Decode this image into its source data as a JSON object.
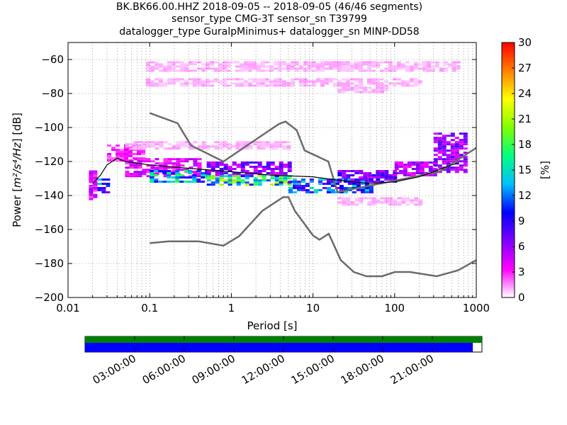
{
  "title_lines": [
    "BK.BK66.00.HHZ   2018-09-05 -- 2018-09-05  (46/46 segments)",
    "sensor_type CMG-3T sensor_sn T39799",
    "datalogger_type GuralpMinimus+ datalogger_sn MINP-DD58"
  ],
  "colors": {
    "noise_model": "#6b6b6b",
    "colorbar_stops": [
      "#ffffff",
      "#ff00ff",
      "#8000ff",
      "#0000ff",
      "#00c0ff",
      "#00ff80",
      "#80ff00",
      "#ffff00",
      "#ff8000",
      "#ff0000"
    ],
    "coverage_top": "#008000",
    "coverage_bottom": "#0000ff"
  },
  "chart_data": {
    "type": "heatmap",
    "xlabel": "Period [s]",
    "ylabel_prefix": "Power [",
    "ylabel_unit": "m²/s⁴/Hz",
    "ylabel_suffix": "] [dB]",
    "x_scale": "log",
    "xlim": [
      0.01,
      1000
    ],
    "ylim": [
      -200,
      -50
    ],
    "xticks": [
      {
        "value": 0.01,
        "label": "0.01"
      },
      {
        "value": 0.1,
        "label": "0.1"
      },
      {
        "value": 1,
        "label": "1"
      },
      {
        "value": 10,
        "label": "10"
      },
      {
        "value": 100,
        "label": "100"
      },
      {
        "value": 1000,
        "label": "1000"
      }
    ],
    "yticks": [
      {
        "value": -60,
        "label": "−60"
      },
      {
        "value": -80,
        "label": "−80"
      },
      {
        "value": -100,
        "label": "−100"
      },
      {
        "value": -120,
        "label": "−120"
      },
      {
        "value": -140,
        "label": "−140"
      },
      {
        "value": -160,
        "label": "−160"
      },
      {
        "value": -180,
        "label": "−180"
      },
      {
        "value": -200,
        "label": "−200"
      }
    ],
    "grid": true,
    "colorbar": {
      "label": "[%]",
      "range": [
        0,
        30
      ],
      "ticks": [
        {
          "value": 0,
          "label": "0"
        },
        {
          "value": 3,
          "label": "3"
        },
        {
          "value": 6,
          "label": "6"
        },
        {
          "value": 9,
          "label": "9"
        },
        {
          "value": 12,
          "label": "12"
        },
        {
          "value": 15,
          "label": "15"
        },
        {
          "value": 18,
          "label": "18"
        },
        {
          "value": 21,
          "label": "21"
        },
        {
          "value": 24,
          "label": "24"
        },
        {
          "value": 27,
          "label": "27"
        },
        {
          "value": 30,
          "label": "30"
        }
      ]
    },
    "noise_models": [
      {
        "x": [
          0.1,
          0.17,
          0.4,
          0.8,
          1.24,
          2.4,
          4.3,
          5,
          6,
          10,
          12,
          15.6,
          21.9,
          31.6,
          45,
          70,
          101,
          154,
          328,
          600,
          1000
        ],
        "y": [
          -168,
          -167,
          -167,
          -169.5,
          -164,
          -149,
          -141,
          -141,
          -149,
          -163.5,
          -166,
          -162.5,
          -178,
          -185,
          -187.5,
          -187.5,
          -185,
          -185,
          -187.5,
          -184,
          -178
        ]
      },
      {
        "x": [
          0.1,
          0.22,
          0.32,
          0.8,
          3.8,
          4.6,
          6.3,
          7.9,
          15.4,
          20,
          354.8,
          1000
        ],
        "y": [
          -91.5,
          -97.5,
          -110.5,
          -120,
          -98,
          -96.5,
          -101.5,
          -113.5,
          -120,
          -138,
          -126,
          -112
        ]
      }
    ],
    "mean_curve": {
      "x": [
        0.02,
        0.025,
        0.03,
        0.04,
        0.05,
        0.1,
        0.3,
        1,
        3,
        10,
        20,
        50,
        100,
        200,
        300,
        500,
        600
      ],
      "y": [
        -133,
        -128,
        -122,
        -118,
        -120,
        -122,
        -124,
        -126,
        -128,
        -129,
        -131,
        -133,
        -132,
        -129,
        -126,
        -122,
        -121
      ]
    },
    "band_density": [
      {
        "x0": 0.018,
        "x1": 0.03,
        "y0": -130,
        "y1": -138,
        "pct": 10
      },
      {
        "x0": 0.018,
        "x1": 0.022,
        "y0": -124,
        "y1": -142,
        "pct": 4
      },
      {
        "x0": 0.03,
        "x1": 0.08,
        "y0": -110,
        "y1": -120,
        "pct": 3
      },
      {
        "x0": 0.05,
        "x1": 0.4,
        "y0": -118,
        "y1": -128,
        "pct": 4
      },
      {
        "x0": 0.1,
        "x1": 0.5,
        "y0": -125,
        "y1": -132,
        "pct": 13
      },
      {
        "x0": 0.5,
        "x1": 5,
        "y0": -120,
        "y1": -128,
        "pct": 6
      },
      {
        "x0": 0.5,
        "x1": 5,
        "y0": -128,
        "y1": -134,
        "pct": 16
      },
      {
        "x0": 5,
        "x1": 50,
        "y0": -130,
        "y1": -138,
        "pct": 11
      },
      {
        "x0": 20,
        "x1": 100,
        "y0": -125,
        "y1": -132,
        "pct": 7
      },
      {
        "x0": 100,
        "x1": 300,
        "y0": -120,
        "y1": -128,
        "pct": 5
      },
      {
        "x0": 300,
        "x1": 700,
        "y0": -103,
        "y1": -126,
        "pct": 6
      },
      {
        "x0": 0.05,
        "x1": 5,
        "y0": -108,
        "y1": -112,
        "pct": 1
      },
      {
        "x0": 20,
        "x1": 200,
        "y0": -141,
        "y1": -146,
        "pct": 1
      },
      {
        "x0": 0.09,
        "x1": 600,
        "y0": -61,
        "y1": -67,
        "pct": 1
      },
      {
        "x0": 0.09,
        "x1": 200,
        "y0": -71,
        "y1": -75,
        "pct": 1
      },
      {
        "x0": 20,
        "x1": 80,
        "y0": -76,
        "y1": -79,
        "pct": 1
      }
    ],
    "coverage": {
      "time_ticks": [
        "03:00:00",
        "06:00:00",
        "09:00:00",
        "12:00:00",
        "15:00:00",
        "18:00:00",
        "21:00:00"
      ],
      "top_fraction": 1.0,
      "bottom_fraction": 0.977
    }
  }
}
